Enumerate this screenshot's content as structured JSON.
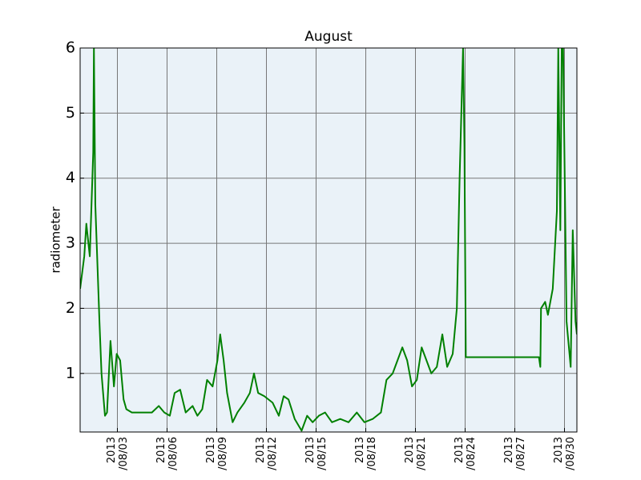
{
  "chart_data": {
    "type": "line",
    "title": "August",
    "ylabel": "radiometer",
    "color": "#008000",
    "grid": true,
    "xlim": [
      "2013-07-31 18:00",
      "2013-08-30 18:00"
    ],
    "xticks": [
      {
        "value": "2013-08-03 00:00",
        "label": "2013\n/08/03"
      },
      {
        "value": "2013-08-06 00:00",
        "label": "2013\n/08/06"
      },
      {
        "value": "2013-08-09 00:00",
        "label": "2013\n/08/09"
      },
      {
        "value": "2013-08-12 00:00",
        "label": "2013\n/08/12"
      },
      {
        "value": "2013-08-15 00:00",
        "label": "2013\n/08/15"
      },
      {
        "value": "2013-08-18 00:00",
        "label": "2013\n/08/18"
      },
      {
        "value": "2013-08-21 00:00",
        "label": "2013\n/08/21"
      },
      {
        "value": "2013-08-24 00:00",
        "label": "2013\n/08/24"
      },
      {
        "value": "2013-08-27 00:00",
        "label": "2013\n/08/27"
      },
      {
        "value": "2013-08-30 00:00",
        "label": "2013\n/08/30"
      }
    ],
    "ylim": [
      0.1,
      6
    ],
    "yticks": [
      1,
      2,
      3,
      4,
      5,
      6
    ],
    "x": [
      "2013-07-31 18:00",
      "2013-08-01 00:00",
      "2013-08-01 03:00",
      "2013-08-01 08:00",
      "2013-08-01 13:00",
      "2013-08-01 14:00",
      "2013-08-01 16:00",
      "2013-08-01 18:00",
      "2013-08-01 22:00",
      "2013-08-02 01:00",
      "2013-08-02 06:00",
      "2013-08-02 09:00",
      "2013-08-02 14:00",
      "2013-08-02 19:00",
      "2013-08-02 23:00",
      "2013-08-03 04:00",
      "2013-08-03 09:00",
      "2013-08-03 13:00",
      "2013-08-03 21:00",
      "2013-08-04 09:00",
      "2013-08-05 02:00",
      "2013-08-05 12:00",
      "2013-08-05 20:00",
      "2013-08-06 04:00",
      "2013-08-06 11:00",
      "2013-08-06 19:00",
      "2013-08-07 03:00",
      "2013-08-07 13:00",
      "2013-08-07 20:00",
      "2013-08-08 03:00",
      "2013-08-08 10:00",
      "2013-08-08 18:00",
      "2013-08-09 01:00",
      "2013-08-09 05:00",
      "2013-08-09 10:00",
      "2013-08-09 15:00",
      "2013-08-09 23:00",
      "2013-08-10 06:00",
      "2013-08-10 16:00",
      "2013-08-11 00:00",
      "2013-08-11 06:00",
      "2013-08-11 12:00",
      "2013-08-11 21:00",
      "2013-08-12 09:00",
      "2013-08-12 18:00",
      "2013-08-13 01:00",
      "2013-08-13 08:00",
      "2013-08-13 17:00",
      "2013-08-14 03:00",
      "2013-08-14 11:00",
      "2013-08-14 19:00",
      "2013-08-15 04:00",
      "2013-08-15 13:00",
      "2013-08-15 23:00",
      "2013-08-16 11:00",
      "2013-08-16 23:00",
      "2013-08-17 11:00",
      "2013-08-17 22:00",
      "2013-08-18 10:00",
      "2013-08-18 22:00",
      "2013-08-19 06:00",
      "2013-08-19 15:00",
      "2013-08-19 22:00",
      "2013-08-20 05:00",
      "2013-08-20 12:00",
      "2013-08-20 19:00",
      "2013-08-21 02:00",
      "2013-08-21 09:00",
      "2013-08-21 16:00",
      "2013-08-21 23:00",
      "2013-08-22 07:00",
      "2013-08-22 15:00",
      "2013-08-22 22:00",
      "2013-08-23 06:00",
      "2013-08-23 12:00",
      "2013-08-23 16:00",
      "2013-08-23 21:00",
      "2013-08-23 23:00",
      "2013-08-24 01:00",
      "2013-08-28 11:00",
      "2013-08-28 13:00",
      "2013-08-28 14:00",
      "2013-08-28 20:00",
      "2013-08-29 00:00",
      "2013-08-29 07:00",
      "2013-08-29 13:00",
      "2013-08-29 15:00",
      "2013-08-29 18:00",
      "2013-08-29 20:00",
      "2013-08-29 22:00",
      "2013-08-30 03:00",
      "2013-08-30 09:00",
      "2013-08-30 12:00",
      "2013-08-30 16:00",
      "2013-08-30 18:00"
    ],
    "values": [
      2.3,
      2.8,
      3.3,
      2.8,
      4.4,
      6.0,
      3.6,
      3.0,
      1.8,
      1.0,
      0.35,
      0.4,
      1.5,
      0.8,
      1.3,
      1.2,
      0.6,
      0.45,
      0.4,
      0.4,
      0.4,
      0.5,
      0.4,
      0.35,
      0.7,
      0.75,
      0.4,
      0.5,
      0.35,
      0.45,
      0.9,
      0.8,
      1.2,
      1.6,
      1.2,
      0.7,
      0.25,
      0.4,
      0.55,
      0.7,
      1.0,
      0.7,
      0.65,
      0.55,
      0.35,
      0.65,
      0.6,
      0.3,
      0.12,
      0.35,
      0.25,
      0.35,
      0.4,
      0.25,
      0.3,
      0.25,
      0.4,
      0.25,
      0.3,
      0.4,
      0.9,
      1.0,
      1.2,
      1.4,
      1.2,
      0.8,
      0.9,
      1.4,
      1.2,
      1.0,
      1.1,
      1.6,
      1.1,
      1.3,
      2.0,
      4.0,
      6.0,
      4.5,
      1.25,
      1.25,
      1.1,
      2.0,
      2.1,
      1.9,
      2.3,
      3.5,
      6.0,
      3.2,
      6.0,
      6.0,
      1.8,
      1.1,
      3.2,
      1.8,
      1.6
    ]
  }
}
